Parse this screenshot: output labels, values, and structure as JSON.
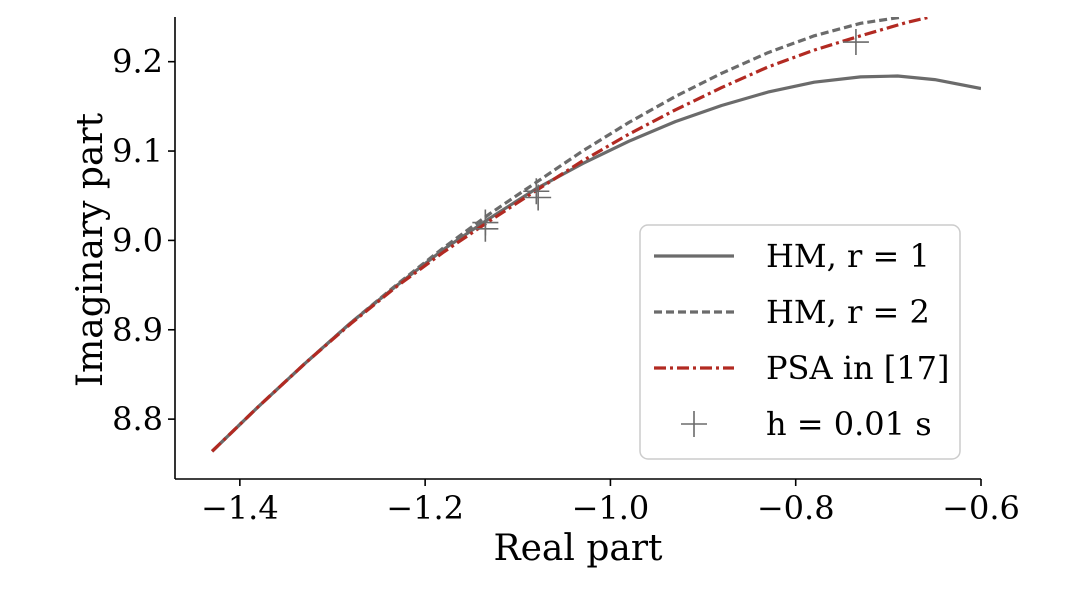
{
  "chart_data": {
    "type": "line",
    "xlabel": "Real part",
    "ylabel": "Imaginary part",
    "xlim": [
      -1.47,
      -0.6
    ],
    "ylim": [
      8.733,
      9.25
    ],
    "xticks": [
      -1.4,
      -1.2,
      -1.0,
      -0.8,
      -0.6
    ],
    "xtick_labels": [
      "−1.4",
      "−1.2",
      "−1.0",
      "−0.8",
      "−0.6"
    ],
    "yticks": [
      8.8,
      8.9,
      9.0,
      9.1,
      9.2
    ],
    "ytick_labels": [
      "8.8",
      "8.9",
      "9.0",
      "9.1",
      "9.2"
    ],
    "grid": false,
    "legend_position": "lower-right",
    "series": [
      {
        "name": "HM,  r = 1",
        "style": "solid",
        "color": "#6b6b6b",
        "x": [
          -1.43,
          -1.38,
          -1.33,
          -1.28,
          -1.23,
          -1.18,
          -1.13,
          -1.08,
          -1.03,
          -0.98,
          -0.93,
          -0.88,
          -0.83,
          -0.78,
          -0.73,
          -0.69,
          -0.65,
          -0.6
        ],
        "y": [
          8.764,
          8.814,
          8.862,
          8.908,
          8.95,
          8.99,
          9.025,
          9.058,
          9.086,
          9.111,
          9.133,
          9.151,
          9.166,
          9.177,
          9.183,
          9.184,
          9.18,
          9.17
        ]
      },
      {
        "name": "HM,  r = 2",
        "style": "dashed",
        "color": "#6b6b6b",
        "x": [
          -1.43,
          -1.38,
          -1.33,
          -1.28,
          -1.23,
          -1.18,
          -1.13,
          -1.08,
          -1.03,
          -0.98,
          -0.93,
          -0.88,
          -0.83,
          -0.78,
          -0.73,
          -0.685
        ],
        "y": [
          8.764,
          8.814,
          8.862,
          8.908,
          8.951,
          8.992,
          9.03,
          9.065,
          9.1,
          9.132,
          9.161,
          9.187,
          9.21,
          9.229,
          9.243,
          9.25
        ]
      },
      {
        "name": "PSA in [17]",
        "style": "dashdot",
        "color": "#b22a22",
        "x": [
          -1.43,
          -1.38,
          -1.33,
          -1.28,
          -1.23,
          -1.18,
          -1.13,
          -1.08,
          -1.03,
          -0.98,
          -0.93,
          -0.88,
          -0.83,
          -0.78,
          -0.73,
          -0.68,
          -0.655
        ],
        "y": [
          8.764,
          8.814,
          8.862,
          8.907,
          8.949,
          8.987,
          9.022,
          9.056,
          9.089,
          9.119,
          9.146,
          9.171,
          9.194,
          9.213,
          9.229,
          9.244,
          9.25
        ]
      }
    ],
    "markers": {
      "name": "h = 0.01 s",
      "symbol": "+",
      "color": "#6b6b6b",
      "points": [
        {
          "x": -1.135,
          "y": 9.02
        },
        {
          "x": -1.135,
          "y": 9.013
        },
        {
          "x": -1.08,
          "y": 9.055
        },
        {
          "x": -1.078,
          "y": 9.048
        },
        {
          "x": -0.735,
          "y": 9.222
        }
      ]
    }
  }
}
